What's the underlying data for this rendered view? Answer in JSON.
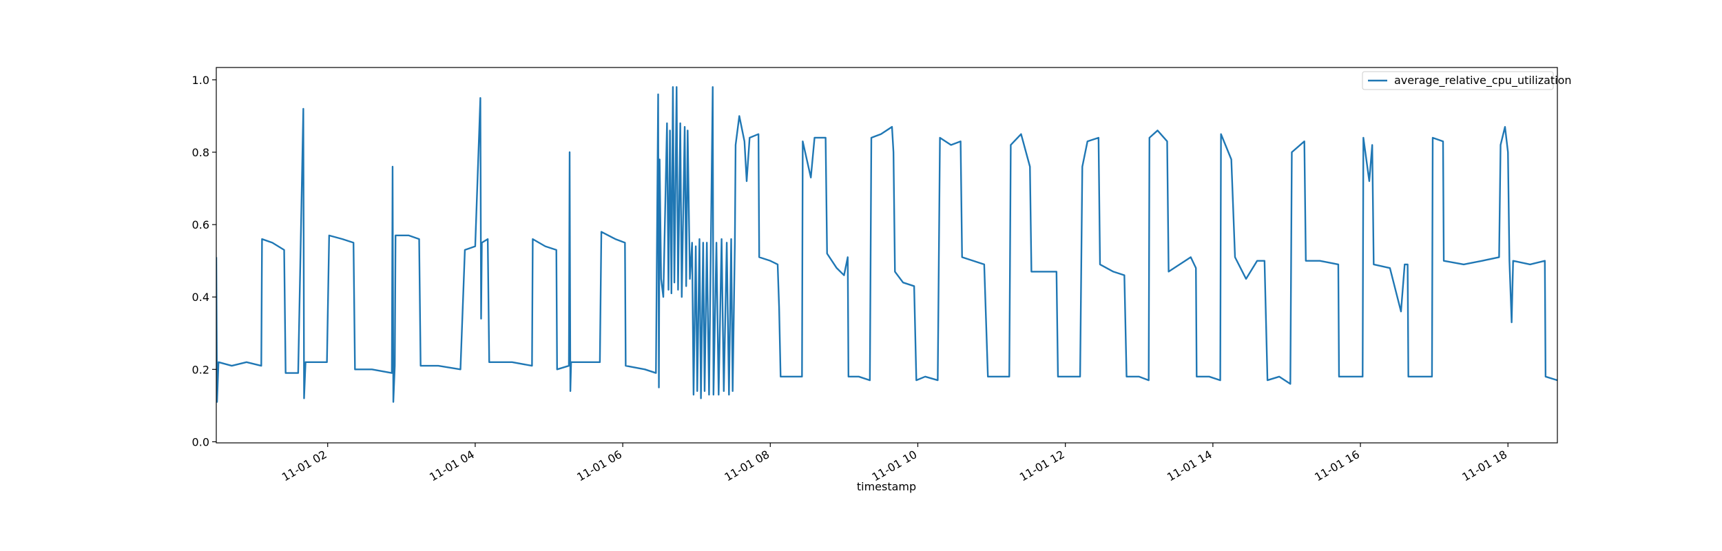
{
  "chart_data": {
    "type": "line",
    "x_label": "timestamp",
    "x": [
      0.49,
      0.5,
      0.52,
      0.7,
      0.9,
      1.1,
      1.11,
      1.25,
      1.41,
      1.43,
      1.6,
      1.67,
      1.68,
      1.7,
      1.9,
      1.99,
      2.02,
      2.2,
      2.35,
      2.37,
      2.6,
      2.87,
      2.88,
      2.89,
      2.91,
      2.92,
      3.1,
      3.24,
      3.26,
      3.5,
      3.8,
      3.86,
      4.0,
      4.07,
      4.08,
      4.09,
      4.17,
      4.19,
      4.5,
      4.77,
      4.78,
      4.95,
      5.1,
      5.11,
      5.27,
      5.28,
      5.29,
      5.3,
      5.69,
      5.71,
      5.9,
      6.03,
      6.04,
      6.3,
      6.45,
      6.48,
      6.49,
      6.5,
      6.52,
      6.55,
      6.6,
      6.62,
      6.64,
      6.66,
      6.68,
      6.7,
      6.73,
      6.75,
      6.78,
      6.8,
      6.84,
      6.86,
      6.88,
      6.91,
      6.94,
      6.96,
      6.99,
      7.01,
      7.04,
      7.06,
      7.09,
      7.11,
      7.14,
      7.17,
      7.22,
      7.23,
      7.27,
      7.3,
      7.34,
      7.37,
      7.41,
      7.44,
      7.47,
      7.49,
      7.52,
      7.53,
      7.58,
      7.65,
      7.68,
      7.72,
      7.84,
      7.85,
      8.0,
      8.1,
      8.12,
      8.14,
      8.3,
      8.43,
      8.44,
      8.55,
      8.6,
      8.75,
      8.77,
      8.9,
      9.0,
      9.05,
      9.06,
      9.2,
      9.35,
      9.37,
      9.5,
      9.65,
      9.67,
      9.69,
      9.8,
      9.95,
      9.98,
      10.1,
      10.27,
      10.3,
      10.45,
      10.58,
      10.6,
      10.75,
      10.9,
      10.95,
      11.1,
      11.24,
      11.26,
      11.4,
      11.52,
      11.54,
      11.7,
      11.88,
      11.9,
      12.05,
      12.2,
      12.23,
      12.3,
      12.45,
      12.47,
      12.65,
      12.8,
      12.83,
      13.0,
      13.13,
      13.14,
      13.25,
      13.38,
      13.4,
      13.55,
      13.7,
      13.77,
      13.78,
      13.95,
      14.1,
      14.11,
      14.25,
      14.3,
      14.45,
      14.6,
      14.7,
      14.74,
      14.9,
      15.05,
      15.07,
      15.24,
      15.26,
      15.45,
      15.7,
      15.71,
      15.9,
      16.03,
      16.04,
      16.12,
      16.16,
      16.18,
      16.4,
      16.55,
      16.6,
      16.64,
      16.65,
      16.8,
      16.97,
      16.98,
      17.12,
      17.13,
      17.4,
      17.65,
      17.88,
      17.9,
      17.96,
      18.0,
      18.02,
      18.05,
      18.07,
      18.3,
      18.5,
      18.51,
      18.67
    ],
    "series": [
      {
        "name": "average_relative_cpu_utilization",
        "color": "#1f77b4",
        "values": [
          0.51,
          0.11,
          0.22,
          0.21,
          0.22,
          0.21,
          0.56,
          0.55,
          0.53,
          0.19,
          0.19,
          0.92,
          0.12,
          0.22,
          0.22,
          0.22,
          0.57,
          0.56,
          0.55,
          0.2,
          0.2,
          0.19,
          0.76,
          0.11,
          0.21,
          0.57,
          0.57,
          0.56,
          0.21,
          0.21,
          0.2,
          0.53,
          0.54,
          0.95,
          0.34,
          0.55,
          0.56,
          0.22,
          0.22,
          0.21,
          0.56,
          0.54,
          0.53,
          0.2,
          0.21,
          0.8,
          0.14,
          0.22,
          0.22,
          0.58,
          0.56,
          0.55,
          0.21,
          0.2,
          0.19,
          0.96,
          0.15,
          0.78,
          0.45,
          0.4,
          0.88,
          0.42,
          0.86,
          0.41,
          0.98,
          0.44,
          0.98,
          0.42,
          0.88,
          0.4,
          0.87,
          0.43,
          0.86,
          0.45,
          0.55,
          0.13,
          0.54,
          0.14,
          0.56,
          0.12,
          0.55,
          0.14,
          0.55,
          0.13,
          0.98,
          0.13,
          0.55,
          0.13,
          0.56,
          0.14,
          0.55,
          0.13,
          0.56,
          0.14,
          0.55,
          0.82,
          0.9,
          0.83,
          0.72,
          0.84,
          0.85,
          0.51,
          0.5,
          0.49,
          0.37,
          0.18,
          0.18,
          0.18,
          0.83,
          0.73,
          0.84,
          0.84,
          0.52,
          0.48,
          0.46,
          0.51,
          0.18,
          0.18,
          0.17,
          0.84,
          0.85,
          0.87,
          0.8,
          0.47,
          0.44,
          0.43,
          0.17,
          0.18,
          0.17,
          0.84,
          0.82,
          0.83,
          0.51,
          0.5,
          0.49,
          0.18,
          0.18,
          0.18,
          0.82,
          0.85,
          0.76,
          0.47,
          0.47,
          0.47,
          0.18,
          0.18,
          0.18,
          0.76,
          0.83,
          0.84,
          0.49,
          0.47,
          0.46,
          0.18,
          0.18,
          0.17,
          0.84,
          0.86,
          0.83,
          0.47,
          0.49,
          0.51,
          0.48,
          0.18,
          0.18,
          0.17,
          0.85,
          0.78,
          0.51,
          0.45,
          0.5,
          0.5,
          0.17,
          0.18,
          0.16,
          0.8,
          0.83,
          0.5,
          0.5,
          0.49,
          0.18,
          0.18,
          0.18,
          0.84,
          0.72,
          0.82,
          0.49,
          0.48,
          0.36,
          0.49,
          0.49,
          0.18,
          0.18,
          0.18,
          0.84,
          0.83,
          0.5,
          0.49,
          0.5,
          0.51,
          0.82,
          0.87,
          0.8,
          0.5,
          0.33,
          0.5,
          0.49,
          0.5,
          0.18,
          0.17
        ]
      }
    ],
    "xlim": [
      0.49,
      18.67
    ],
    "xticks": [
      {
        "value": 2,
        "label": "11-01 02"
      },
      {
        "value": 4,
        "label": "11-01 04"
      },
      {
        "value": 6,
        "label": "11-01 06"
      },
      {
        "value": 8,
        "label": "11-01 08"
      },
      {
        "value": 10,
        "label": "11-01 10"
      },
      {
        "value": 12,
        "label": "11-01 12"
      },
      {
        "value": 14,
        "label": "11-01 14"
      },
      {
        "value": 16,
        "label": "11-01 16"
      },
      {
        "value": 18,
        "label": "11-01 18"
      }
    ],
    "ylim": [
      -0.003,
      1.034
    ],
    "yticks": [
      {
        "value": 0,
        "label": "0.0"
      },
      0.2,
      0.4,
      0.6,
      0.8,
      {
        "value": 1,
        "label": "1.0"
      }
    ],
    "legend": "upper right"
  }
}
